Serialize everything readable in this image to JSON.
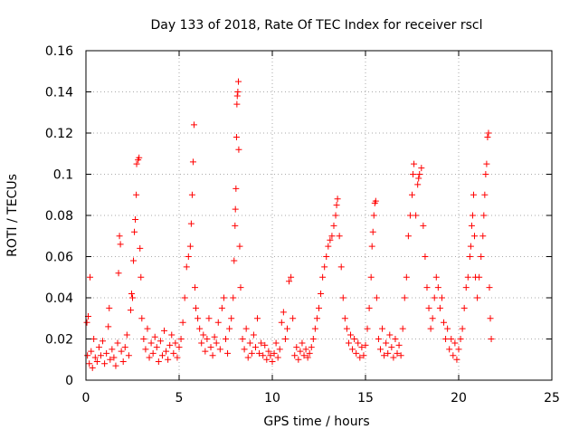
{
  "chart_data": {
    "type": "scatter",
    "title": "Day 133 of 2018, Rate Of TEC Index for receiver rscl",
    "xlabel": "GPS time / hours",
    "ylabel": "ROTI / TECUs",
    "xlim": [
      0,
      25
    ],
    "ylim": [
      0,
      0.16
    ],
    "x_ticks": [
      0,
      5,
      10,
      15,
      20,
      25
    ],
    "x_tick_labels": [
      "0",
      "5",
      "10",
      "15",
      "20",
      "25"
    ],
    "y_ticks": [
      0,
      0.02,
      0.04,
      0.06,
      0.08,
      0.1,
      0.12,
      0.14,
      0.16
    ],
    "y_tick_labels": [
      "0",
      "0.02",
      "0.04",
      "0.06",
      "0.08",
      "0.1",
      "0.12",
      "0.14",
      "0.16"
    ],
    "grid": true,
    "marker": "+",
    "colors": {
      "series": "#ff0000",
      "grid": "#aaaaaa",
      "axis": "#000000"
    },
    "series": [
      {
        "name": "ROTI",
        "points": [
          [
            0.05,
            0.028
          ],
          [
            0.08,
            0.012
          ],
          [
            0.12,
            0.031
          ],
          [
            0.18,
            0.008
          ],
          [
            0.22,
            0.05
          ],
          [
            0.28,
            0.014
          ],
          [
            0.35,
            0.006
          ],
          [
            0.42,
            0.02
          ],
          [
            0.5,
            0.011
          ],
          [
            0.6,
            0.009
          ],
          [
            0.7,
            0.016
          ],
          [
            0.8,
            0.012
          ],
          [
            0.9,
            0.019
          ],
          [
            1.0,
            0.008
          ],
          [
            1.1,
            0.013
          ],
          [
            1.2,
            0.026
          ],
          [
            1.25,
            0.035
          ],
          [
            1.3,
            0.01
          ],
          [
            1.4,
            0.015
          ],
          [
            1.5,
            0.011
          ],
          [
            1.6,
            0.007
          ],
          [
            1.7,
            0.018
          ],
          [
            1.75,
            0.052
          ],
          [
            1.8,
            0.07
          ],
          [
            1.85,
            0.066
          ],
          [
            1.9,
            0.014
          ],
          [
            2.0,
            0.009
          ],
          [
            2.1,
            0.016
          ],
          [
            2.2,
            0.022
          ],
          [
            2.3,
            0.012
          ],
          [
            2.4,
            0.034
          ],
          [
            2.45,
            0.042
          ],
          [
            2.5,
            0.04
          ],
          [
            2.55,
            0.058
          ],
          [
            2.6,
            0.072
          ],
          [
            2.65,
            0.078
          ],
          [
            2.7,
            0.09
          ],
          [
            2.72,
            0.105
          ],
          [
            2.8,
            0.107
          ],
          [
            2.85,
            0.108
          ],
          [
            2.9,
            0.064
          ],
          [
            2.95,
            0.05
          ],
          [
            3.0,
            0.03
          ],
          [
            3.1,
            0.02
          ],
          [
            3.2,
            0.015
          ],
          [
            3.3,
            0.025
          ],
          [
            3.4,
            0.011
          ],
          [
            3.5,
            0.018
          ],
          [
            3.6,
            0.013
          ],
          [
            3.7,
            0.021
          ],
          [
            3.8,
            0.016
          ],
          [
            3.9,
            0.009
          ],
          [
            4.0,
            0.019
          ],
          [
            4.1,
            0.012
          ],
          [
            4.2,
            0.024
          ],
          [
            4.3,
            0.014
          ],
          [
            4.4,
            0.01
          ],
          [
            4.5,
            0.017
          ],
          [
            4.6,
            0.022
          ],
          [
            4.7,
            0.013
          ],
          [
            4.8,
            0.018
          ],
          [
            4.9,
            0.011
          ],
          [
            5.0,
            0.016
          ],
          [
            5.1,
            0.02
          ],
          [
            5.2,
            0.028
          ],
          [
            5.3,
            0.04
          ],
          [
            5.4,
            0.055
          ],
          [
            5.5,
            0.06
          ],
          [
            5.6,
            0.065
          ],
          [
            5.65,
            0.076
          ],
          [
            5.7,
            0.09
          ],
          [
            5.75,
            0.106
          ],
          [
            5.8,
            0.124
          ],
          [
            5.85,
            0.045
          ],
          [
            5.9,
            0.035
          ],
          [
            6.0,
            0.03
          ],
          [
            6.1,
            0.025
          ],
          [
            6.2,
            0.018
          ],
          [
            6.3,
            0.022
          ],
          [
            6.4,
            0.014
          ],
          [
            6.5,
            0.02
          ],
          [
            6.6,
            0.03
          ],
          [
            6.7,
            0.016
          ],
          [
            6.8,
            0.012
          ],
          [
            6.9,
            0.021
          ],
          [
            7.0,
            0.018
          ],
          [
            7.1,
            0.028
          ],
          [
            7.2,
            0.015
          ],
          [
            7.3,
            0.035
          ],
          [
            7.4,
            0.04
          ],
          [
            7.5,
            0.02
          ],
          [
            7.6,
            0.013
          ],
          [
            7.7,
            0.025
          ],
          [
            7.8,
            0.03
          ],
          [
            7.9,
            0.04
          ],
          [
            7.95,
            0.058
          ],
          [
            8.0,
            0.075
          ],
          [
            8.02,
            0.083
          ],
          [
            8.05,
            0.093
          ],
          [
            8.08,
            0.118
          ],
          [
            8.1,
            0.134
          ],
          [
            8.12,
            0.138
          ],
          [
            8.15,
            0.14
          ],
          [
            8.18,
            0.145
          ],
          [
            8.2,
            0.112
          ],
          [
            8.25,
            0.065
          ],
          [
            8.3,
            0.045
          ],
          [
            8.4,
            0.02
          ],
          [
            8.5,
            0.015
          ],
          [
            8.6,
            0.025
          ],
          [
            8.7,
            0.011
          ],
          [
            8.8,
            0.018
          ],
          [
            8.9,
            0.013
          ],
          [
            9.0,
            0.022
          ],
          [
            9.1,
            0.016
          ],
          [
            9.2,
            0.03
          ],
          [
            9.3,
            0.013
          ],
          [
            9.4,
            0.018
          ],
          [
            9.5,
            0.012
          ],
          [
            9.6,
            0.017
          ],
          [
            9.7,
            0.01
          ],
          [
            9.8,
            0.014
          ],
          [
            9.9,
            0.012
          ],
          [
            10.0,
            0.009
          ],
          [
            10.1,
            0.013
          ],
          [
            10.2,
            0.018
          ],
          [
            10.3,
            0.011
          ],
          [
            10.4,
            0.015
          ],
          [
            10.5,
            0.028
          ],
          [
            10.6,
            0.033
          ],
          [
            10.7,
            0.02
          ],
          [
            10.8,
            0.025
          ],
          [
            10.9,
            0.048
          ],
          [
            11.0,
            0.05
          ],
          [
            11.1,
            0.03
          ],
          [
            11.2,
            0.012
          ],
          [
            11.3,
            0.016
          ],
          [
            11.4,
            0.01
          ],
          [
            11.5,
            0.014
          ],
          [
            11.6,
            0.018
          ],
          [
            11.7,
            0.012
          ],
          [
            11.8,
            0.015
          ],
          [
            11.9,
            0.011
          ],
          [
            12.0,
            0.013
          ],
          [
            12.1,
            0.016
          ],
          [
            12.2,
            0.02
          ],
          [
            12.3,
            0.025
          ],
          [
            12.4,
            0.03
          ],
          [
            12.5,
            0.035
          ],
          [
            12.6,
            0.042
          ],
          [
            12.7,
            0.05
          ],
          [
            12.8,
            0.055
          ],
          [
            12.9,
            0.06
          ],
          [
            13.0,
            0.065
          ],
          [
            13.1,
            0.068
          ],
          [
            13.2,
            0.07
          ],
          [
            13.3,
            0.075
          ],
          [
            13.4,
            0.08
          ],
          [
            13.45,
            0.085
          ],
          [
            13.5,
            0.088
          ],
          [
            13.6,
            0.07
          ],
          [
            13.7,
            0.055
          ],
          [
            13.8,
            0.04
          ],
          [
            13.9,
            0.03
          ],
          [
            14.0,
            0.025
          ],
          [
            14.1,
            0.018
          ],
          [
            14.2,
            0.022
          ],
          [
            14.3,
            0.015
          ],
          [
            14.4,
            0.02
          ],
          [
            14.5,
            0.013
          ],
          [
            14.6,
            0.018
          ],
          [
            14.7,
            0.011
          ],
          [
            14.8,
            0.016
          ],
          [
            14.9,
            0.012
          ],
          [
            15.0,
            0.017
          ],
          [
            15.1,
            0.025
          ],
          [
            15.2,
            0.035
          ],
          [
            15.3,
            0.05
          ],
          [
            15.35,
            0.065
          ],
          [
            15.4,
            0.072
          ],
          [
            15.45,
            0.08
          ],
          [
            15.5,
            0.086
          ],
          [
            15.55,
            0.087
          ],
          [
            15.6,
            0.04
          ],
          [
            15.7,
            0.02
          ],
          [
            15.8,
            0.015
          ],
          [
            15.9,
            0.025
          ],
          [
            16.0,
            0.012
          ],
          [
            16.1,
            0.018
          ],
          [
            16.2,
            0.013
          ],
          [
            16.3,
            0.022
          ],
          [
            16.4,
            0.016
          ],
          [
            16.5,
            0.011
          ],
          [
            16.6,
            0.02
          ],
          [
            16.7,
            0.013
          ],
          [
            16.8,
            0.017
          ],
          [
            16.9,
            0.012
          ],
          [
            17.0,
            0.025
          ],
          [
            17.1,
            0.04
          ],
          [
            17.2,
            0.05
          ],
          [
            17.3,
            0.07
          ],
          [
            17.4,
            0.08
          ],
          [
            17.5,
            0.09
          ],
          [
            17.55,
            0.1
          ],
          [
            17.6,
            0.105
          ],
          [
            17.7,
            0.08
          ],
          [
            17.8,
            0.095
          ],
          [
            17.85,
            0.098
          ],
          [
            17.9,
            0.1
          ],
          [
            18.0,
            0.103
          ],
          [
            18.1,
            0.075
          ],
          [
            18.2,
            0.06
          ],
          [
            18.3,
            0.045
          ],
          [
            18.4,
            0.035
          ],
          [
            18.5,
            0.025
          ],
          [
            18.6,
            0.03
          ],
          [
            18.7,
            0.04
          ],
          [
            18.8,
            0.05
          ],
          [
            18.9,
            0.045
          ],
          [
            19.0,
            0.035
          ],
          [
            19.1,
            0.04
          ],
          [
            19.2,
            0.028
          ],
          [
            19.3,
            0.02
          ],
          [
            19.4,
            0.025
          ],
          [
            19.5,
            0.015
          ],
          [
            19.6,
            0.02
          ],
          [
            19.7,
            0.012
          ],
          [
            19.8,
            0.018
          ],
          [
            19.9,
            0.01
          ],
          [
            20.0,
            0.015
          ],
          [
            20.1,
            0.02
          ],
          [
            20.2,
            0.025
          ],
          [
            20.3,
            0.035
          ],
          [
            20.4,
            0.045
          ],
          [
            20.5,
            0.05
          ],
          [
            20.6,
            0.06
          ],
          [
            20.65,
            0.065
          ],
          [
            20.7,
            0.075
          ],
          [
            20.75,
            0.08
          ],
          [
            20.8,
            0.09
          ],
          [
            20.85,
            0.07
          ],
          [
            20.9,
            0.05
          ],
          [
            21.0,
            0.04
          ],
          [
            21.1,
            0.05
          ],
          [
            21.2,
            0.06
          ],
          [
            21.3,
            0.07
          ],
          [
            21.35,
            0.08
          ],
          [
            21.4,
            0.09
          ],
          [
            21.45,
            0.1
          ],
          [
            21.5,
            0.105
          ],
          [
            21.55,
            0.118
          ],
          [
            21.6,
            0.12
          ],
          [
            21.65,
            0.045
          ],
          [
            21.7,
            0.03
          ],
          [
            21.75,
            0.02
          ]
        ]
      }
    ]
  }
}
